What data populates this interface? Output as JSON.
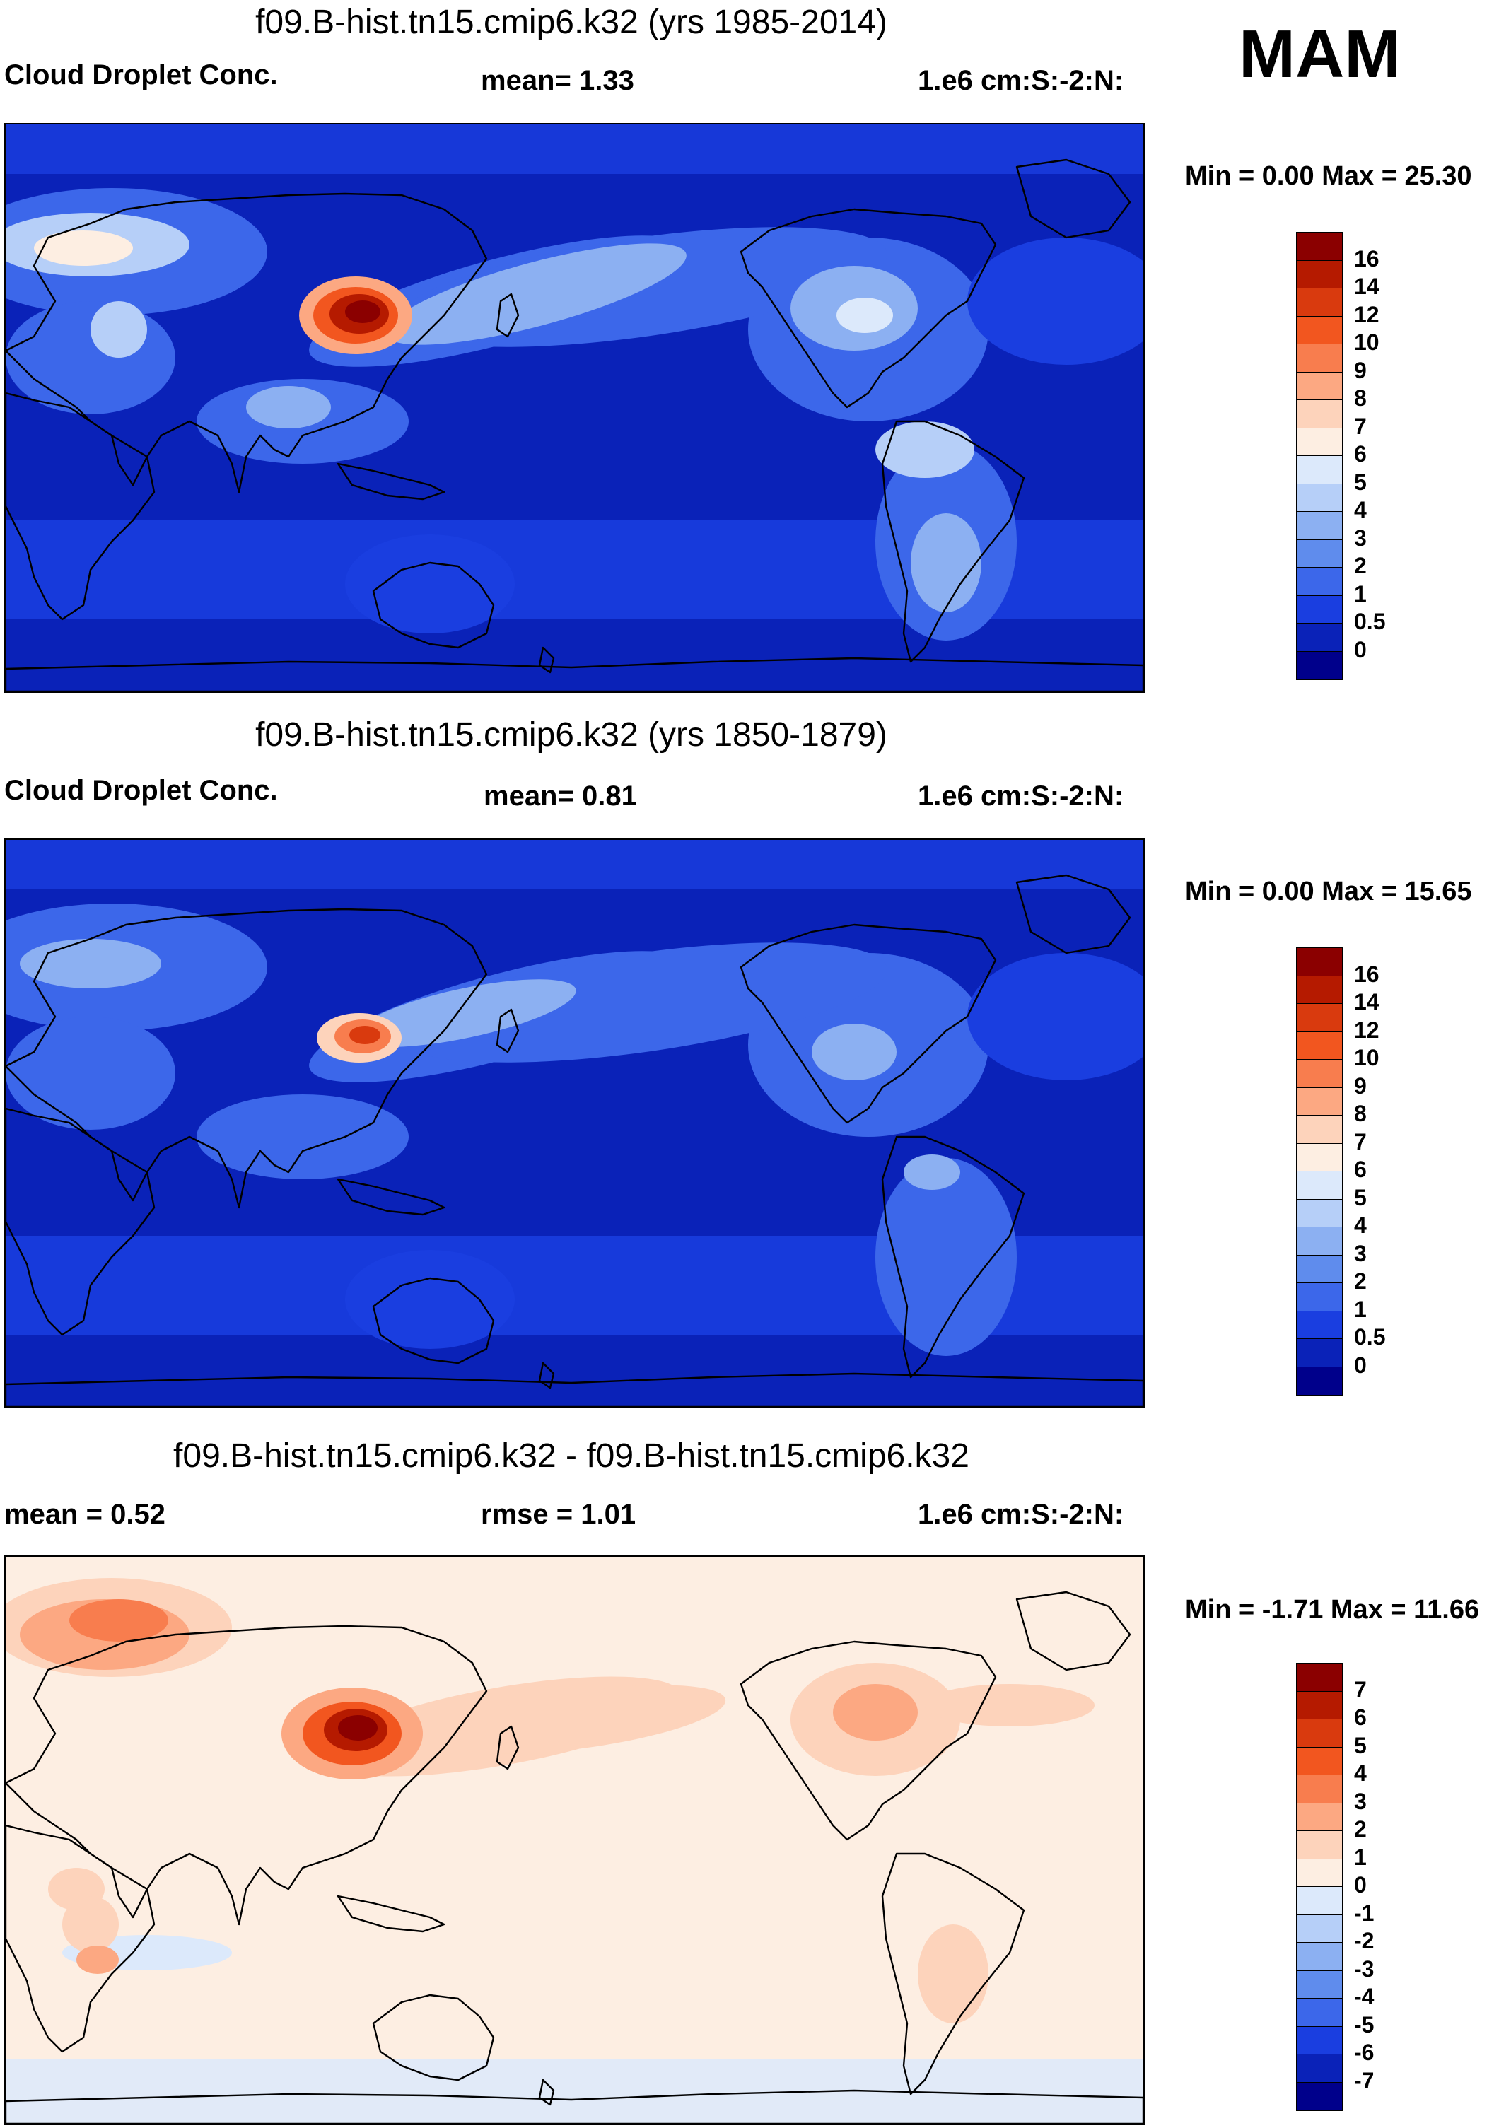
{
  "season": "MAM",
  "panels": [
    {
      "id": "p1",
      "title": "f09.B-hist.tn15.cmip6.k32 (yrs 1985-2014)",
      "left_label": "Cloud Droplet Conc.",
      "center_label": "mean=   1.33",
      "units": "1.e6 cm:S:-2:N:",
      "minmax": "Min =   0.00 Max =  25.30",
      "stats": {
        "mean": 1.33,
        "min": 0.0,
        "max": 25.3
      },
      "colorbar": {
        "labels": [
          "16",
          "14",
          "12",
          "10",
          "9",
          "8",
          "7",
          "6",
          "5",
          "4",
          "3",
          "2",
          "1",
          "0.5",
          "0"
        ],
        "colors": [
          "#8b0000",
          "#b51a00",
          "#d93a0e",
          "#f2561f",
          "#f87d4e",
          "#fca882",
          "#fdd3bb",
          "#fdeee2",
          "#dce9fb",
          "#b6cff8",
          "#8cb0f2",
          "#5f8ced",
          "#3c67ea",
          "#1a3ee0",
          "#0a22b8",
          "#00008b"
        ]
      },
      "field_style": "present"
    },
    {
      "id": "p2",
      "title": "f09.B-hist.tn15.cmip6.k32 (yrs 1850-1879)",
      "left_label": "Cloud Droplet Conc.",
      "center_label": "mean=   0.81",
      "units": "1.e6 cm:S:-2:N:",
      "minmax": "Min =   0.00 Max =  15.65",
      "stats": {
        "mean": 0.81,
        "min": 0.0,
        "max": 15.65
      },
      "colorbar": {
        "labels": [
          "16",
          "14",
          "12",
          "10",
          "9",
          "8",
          "7",
          "6",
          "5",
          "4",
          "3",
          "2",
          "1",
          "0.5",
          "0"
        ],
        "colors": [
          "#8b0000",
          "#b51a00",
          "#d93a0e",
          "#f2561f",
          "#f87d4e",
          "#fca882",
          "#fdd3bb",
          "#fdeee2",
          "#dce9fb",
          "#b6cff8",
          "#8cb0f2",
          "#5f8ced",
          "#3c67ea",
          "#1a3ee0",
          "#0a22b8",
          "#00008b"
        ]
      },
      "field_style": "preindustrial"
    },
    {
      "id": "p3",
      "title": "f09.B-hist.tn15.cmip6.k32 - f09.B-hist.tn15.cmip6.k32",
      "left_label": "mean =   0.52",
      "center_label": "rmse =   1.01",
      "units": "1.e6 cm:S:-2:N:",
      "minmax": "Min =  -1.71 Max =  11.66",
      "stats": {
        "mean": 0.52,
        "rmse": 1.01,
        "min": -1.71,
        "max": 11.66
      },
      "colorbar": {
        "labels": [
          "7",
          "6",
          "5",
          "4",
          "3",
          "2",
          "1",
          "0",
          "-1",
          "-2",
          "-3",
          "-4",
          "-5",
          "-6",
          "-7"
        ],
        "colors": [
          "#8b0000",
          "#b51a00",
          "#d93a0e",
          "#f2561f",
          "#f87d4e",
          "#fca882",
          "#fdd3bb",
          "#fdeee2",
          "#dce9fb",
          "#b6cff8",
          "#8cb0f2",
          "#5f8ced",
          "#3c67ea",
          "#1a3ee0",
          "#0a22b8",
          "#00008b"
        ]
      },
      "field_style": "difference"
    }
  ]
}
